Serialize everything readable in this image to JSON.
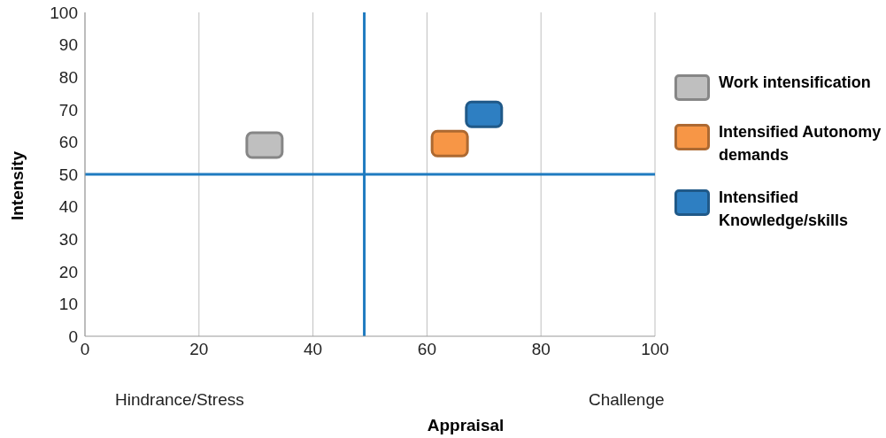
{
  "chart_data": {
    "type": "scatter",
    "xlabel": "Appraisal",
    "ylabel": "Intensity",
    "xlim": [
      0,
      100
    ],
    "xticks": [
      0,
      20,
      40,
      60,
      80,
      100
    ],
    "ylim": [
      0,
      100
    ],
    "yticks": [
      0,
      10,
      20,
      30,
      40,
      50,
      60,
      70,
      80,
      90,
      100
    ],
    "grid": "x",
    "legend": "right",
    "marker": "square",
    "series": [
      {
        "name": "Work intensification",
        "color": "#bfbfbf",
        "x": [
          31.5
        ],
        "values": [
          59
        ]
      },
      {
        "name": "Intensified Autonomy demands",
        "color": "#f79646",
        "x": [
          64
        ],
        "values": [
          59.5
        ]
      },
      {
        "name": "Intensified Knowledge/skills",
        "color": "#2e7fc2",
        "x": [
          70
        ],
        "values": [
          68.5
        ]
      }
    ],
    "ref_lines": [
      {
        "axis": "x",
        "value": 49,
        "color": "#1f7bc0"
      },
      {
        "axis": "y",
        "value": 50,
        "color": "#1f7bc0"
      }
    ],
    "annotations": [
      "Hindrance/Stress",
      "Challenge"
    ]
  }
}
